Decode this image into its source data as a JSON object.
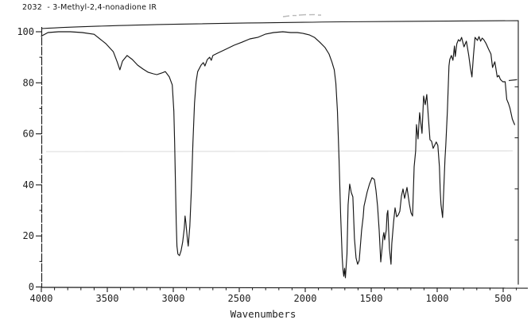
{
  "header": {
    "title": "2032  - 3-Methyl-2,4-nonadione IR"
  },
  "colors": {
    "ink": "#1a1a1a",
    "paper": "#ffffff",
    "faint_scan_line": "#e7e7e7",
    "smudge": "#b9b9b9"
  },
  "chart_data": {
    "type": "line",
    "title": "2032 - 3-Methyl-2,4-nonadione IR",
    "xlabel": "Wavenumbers",
    "ylabel": "",
    "grid": false,
    "x_axis": {
      "unit": "cm-1",
      "direction": "decreasing",
      "min": 350,
      "max": 4000,
      "major_ticks": [
        4000,
        3500,
        3000,
        2500,
        2000,
        1500,
        1000,
        500
      ],
      "minor_tick_step": 100
    },
    "y_axis": {
      "unit": "percent transmittance",
      "min": 0,
      "max": 100,
      "major_ticks": [
        100,
        80,
        60,
        40,
        20,
        0
      ],
      "minor_tick_step": 10
    },
    "series": [
      {
        "name": "IR transmittance spectrum",
        "points": [
          [
            4000,
            98.3
          ],
          [
            3950,
            99.7
          ],
          [
            3870,
            100
          ],
          [
            3780,
            100
          ],
          [
            3690,
            99.7
          ],
          [
            3600,
            99
          ],
          [
            3510,
            95.3
          ],
          [
            3455,
            92.2
          ],
          [
            3425,
            88.2
          ],
          [
            3405,
            85.1
          ],
          [
            3385,
            88.5
          ],
          [
            3350,
            90.7
          ],
          [
            3310,
            89.1
          ],
          [
            3270,
            86.9
          ],
          [
            3230,
            85.4
          ],
          [
            3190,
            84.1
          ],
          [
            3150,
            83.5
          ],
          [
            3125,
            83.2
          ],
          [
            3090,
            83.8
          ],
          [
            3060,
            84.4
          ],
          [
            3030,
            82.3
          ],
          [
            3008,
            79.2
          ],
          [
            2996,
            68.9
          ],
          [
            2990,
            56.5
          ],
          [
            2984,
            40.9
          ],
          [
            2978,
            25.3
          ],
          [
            2972,
            16
          ],
          [
            2965,
            12.9
          ],
          [
            2953,
            12.3
          ],
          [
            2941,
            14.2
          ],
          [
            2929,
            17.6
          ],
          [
            2917,
            22.9
          ],
          [
            2911,
            27.8
          ],
          [
            2905,
            25.3
          ],
          [
            2893,
            18.5
          ],
          [
            2887,
            16
          ],
          [
            2875,
            23.8
          ],
          [
            2863,
            37.8
          ],
          [
            2851,
            56.5
          ],
          [
            2839,
            72
          ],
          [
            2827,
            80.4
          ],
          [
            2815,
            84.4
          ],
          [
            2790,
            86.9
          ],
          [
            2772,
            87.9
          ],
          [
            2760,
            86.6
          ],
          [
            2742,
            89.1
          ],
          [
            2724,
            90
          ],
          [
            2712,
            88.8
          ],
          [
            2700,
            90.7
          ],
          [
            2665,
            91.6
          ],
          [
            2600,
            93.2
          ],
          [
            2540,
            94.7
          ],
          [
            2480,
            95.9
          ],
          [
            2420,
            97.2
          ],
          [
            2360,
            97.8
          ],
          [
            2300,
            99.1
          ],
          [
            2240,
            99.7
          ],
          [
            2170,
            100
          ],
          [
            2110,
            99.7
          ],
          [
            2060,
            99.7
          ],
          [
            2020,
            99.4
          ],
          [
            1970,
            98.8
          ],
          [
            1930,
            97.8
          ],
          [
            1890,
            95.9
          ],
          [
            1850,
            93.8
          ],
          [
            1820,
            91.3
          ],
          [
            1798,
            88.2
          ],
          [
            1780,
            85.1
          ],
          [
            1768,
            79.8
          ],
          [
            1756,
            68.9
          ],
          [
            1744,
            50.2
          ],
          [
            1732,
            28.5
          ],
          [
            1720,
            11.4
          ],
          [
            1714,
            6.7
          ],
          [
            1708,
            4.2
          ],
          [
            1702,
            7.3
          ],
          [
            1696,
            3.6
          ],
          [
            1684,
            12.9
          ],
          [
            1675,
            32.2
          ],
          [
            1663,
            40.3
          ],
          [
            1651,
            37
          ],
          [
            1639,
            35.3
          ],
          [
            1627,
            19
          ],
          [
            1615,
            11.4
          ],
          [
            1603,
            8.9
          ],
          [
            1591,
            10.4
          ],
          [
            1573,
            22.2
          ],
          [
            1561,
            27.5
          ],
          [
            1555,
            31.6
          ],
          [
            1531,
            37.2
          ],
          [
            1513,
            40.3
          ],
          [
            1494,
            42.8
          ],
          [
            1476,
            42.1
          ],
          [
            1464,
            37.8
          ],
          [
            1452,
            31.6
          ],
          [
            1440,
            22.2
          ],
          [
            1428,
            9.8
          ],
          [
            1416,
            16
          ],
          [
            1410,
            19.7
          ],
          [
            1404,
            21.3
          ],
          [
            1398,
            18.5
          ],
          [
            1386,
            22.2
          ],
          [
            1380,
            28.5
          ],
          [
            1374,
            30
          ],
          [
            1368,
            22.2
          ],
          [
            1362,
            15.1
          ],
          [
            1350,
            8.9
          ],
          [
            1344,
            17
          ],
          [
            1331,
            25.3
          ],
          [
            1319,
            31
          ],
          [
            1307,
            27.5
          ],
          [
            1295,
            28.2
          ],
          [
            1283,
            29.7
          ],
          [
            1271,
            35.6
          ],
          [
            1259,
            38.4
          ],
          [
            1247,
            34.7
          ],
          [
            1229,
            39
          ],
          [
            1211,
            32.5
          ],
          [
            1199,
            29.1
          ],
          [
            1187,
            27.8
          ],
          [
            1175,
            47.1
          ],
          [
            1163,
            53.3
          ],
          [
            1157,
            63.6
          ],
          [
            1145,
            58
          ],
          [
            1133,
            68.3
          ],
          [
            1115,
            60.2
          ],
          [
            1103,
            74.8
          ],
          [
            1091,
            71.4
          ],
          [
            1079,
            75.4
          ],
          [
            1067,
            66.4
          ],
          [
            1055,
            57.7
          ],
          [
            1043,
            57.1
          ],
          [
            1031,
            54.3
          ],
          [
            1007,
            56.8
          ],
          [
            995,
            55.5
          ],
          [
            983,
            47.1
          ],
          [
            977,
            37.8
          ],
          [
            971,
            32.2
          ],
          [
            959,
            27.2
          ],
          [
            953,
            34.7
          ],
          [
            941,
            50.2
          ],
          [
            935,
            55.5
          ],
          [
            923,
            68.9
          ],
          [
            911,
            86.6
          ],
          [
            905,
            89.1
          ],
          [
            893,
            90.7
          ],
          [
            881,
            88.8
          ],
          [
            869,
            94.4
          ],
          [
            863,
            90.3
          ],
          [
            851,
            95.3
          ],
          [
            839,
            96.9
          ],
          [
            827,
            96.3
          ],
          [
            815,
            97.8
          ],
          [
            797,
            94.1
          ],
          [
            779,
            96.3
          ],
          [
            761,
            90.7
          ],
          [
            749,
            86
          ],
          [
            737,
            82.3
          ],
          [
            725,
            90.7
          ],
          [
            713,
            97.8
          ],
          [
            695,
            96.6
          ],
          [
            683,
            98.1
          ],
          [
            671,
            96.3
          ],
          [
            659,
            97.5
          ],
          [
            647,
            96.9
          ],
          [
            629,
            95.3
          ],
          [
            611,
            93.2
          ],
          [
            593,
            91.3
          ],
          [
            581,
            86
          ],
          [
            563,
            88.2
          ],
          [
            545,
            82.3
          ],
          [
            533,
            82.9
          ],
          [
            521,
            81.3
          ],
          [
            503,
            80.4
          ],
          [
            485,
            80.4
          ],
          [
            473,
            73.5
          ],
          [
            461,
            72
          ],
          [
            449,
            70.1
          ],
          [
            431,
            65.8
          ],
          [
            413,
            63.6
          ]
        ]
      }
    ]
  }
}
